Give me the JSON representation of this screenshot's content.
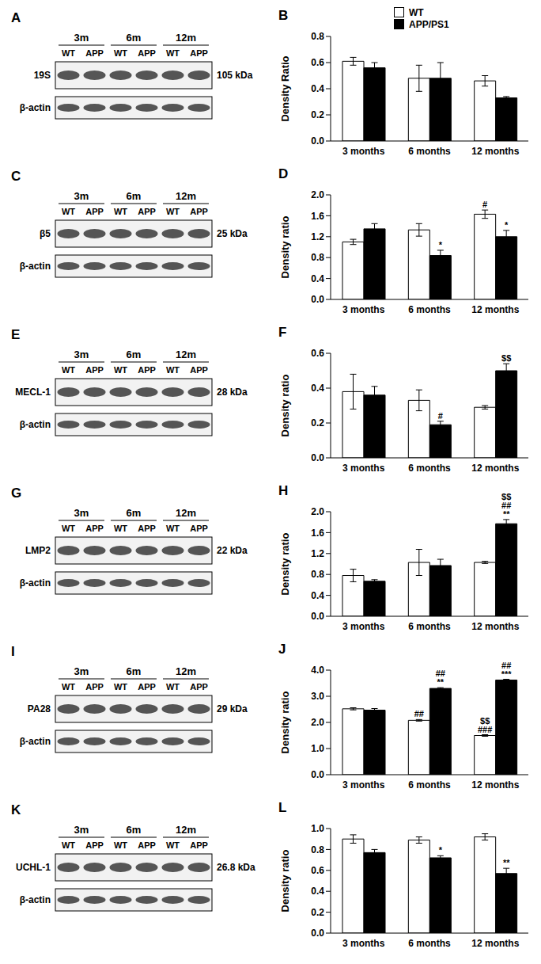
{
  "chart_data": [
    {
      "type": "bar",
      "title": "B",
      "y_label": "Density Ratio",
      "categories": [
        "3 months",
        "6 months",
        "12 months"
      ],
      "ylim": [
        0,
        0.8
      ],
      "yticks": [
        {
          "value": 0,
          "label": "0.0"
        },
        0.2,
        0.4,
        0.6,
        0.8
      ],
      "legend": "top",
      "series": [
        {
          "name": "WT",
          "color": "#ffffff",
          "values": [
            0.61,
            0.48,
            0.46
          ],
          "errors": [
            0.03,
            0.1,
            0.04
          ],
          "annotations": [
            [],
            [],
            []
          ]
        },
        {
          "name": "APP/PS1",
          "color": "#000000",
          "values": [
            0.56,
            0.48,
            0.33
          ],
          "errors": [
            0.04,
            0.12,
            0.01
          ],
          "annotations": [
            [],
            [],
            []
          ]
        }
      ]
    },
    {
      "type": "bar",
      "title": "D",
      "y_label": "Density ratio",
      "categories": [
        "3 months",
        "6 months",
        "12 months"
      ],
      "ylim": [
        0,
        2
      ],
      "yticks": [
        {
          "value": 0,
          "label": "0.0"
        },
        0.4,
        0.8,
        1.2,
        1.6,
        {
          "value": 2,
          "label": "2.0"
        }
      ],
      "series": [
        {
          "name": "WT",
          "color": "#ffffff",
          "values": [
            1.1,
            1.33,
            1.63
          ],
          "errors": [
            0.05,
            0.12,
            0.08
          ],
          "annotations": [
            [],
            [],
            [
              "#"
            ]
          ]
        },
        {
          "name": "APP/PS1",
          "color": "#000000",
          "values": [
            1.35,
            0.84,
            1.2
          ],
          "errors": [
            0.1,
            0.1,
            0.12
          ],
          "annotations": [
            [],
            [
              "*"
            ],
            [
              "*"
            ]
          ]
        }
      ]
    },
    {
      "type": "bar",
      "title": "F",
      "y_label": "Density ratio",
      "categories": [
        "3 months",
        "6 months",
        "12 months"
      ],
      "ylim": [
        0,
        0.6
      ],
      "yticks": [
        {
          "value": 0,
          "label": "0.0"
        },
        0.2,
        0.4,
        0.6
      ],
      "series": [
        {
          "name": "WT",
          "color": "#ffffff",
          "values": [
            0.38,
            0.33,
            0.29
          ],
          "errors": [
            0.1,
            0.06,
            0.01
          ],
          "annotations": [
            [],
            [],
            []
          ]
        },
        {
          "name": "APP/PS1",
          "color": "#000000",
          "values": [
            0.36,
            0.19,
            0.5
          ],
          "errors": [
            0.05,
            0.02,
            0.04
          ],
          "annotations": [
            [],
            [
              "#"
            ],
            [
              "$$"
            ]
          ]
        }
      ]
    },
    {
      "type": "bar",
      "title": "H",
      "y_label": "Density ratio",
      "categories": [
        "3 months",
        "6 months",
        "12 months"
      ],
      "ylim": [
        0,
        2
      ],
      "yticks": [
        {
          "value": 0,
          "label": "0.0"
        },
        0.4,
        0.8,
        1.2,
        1.6,
        {
          "value": 2,
          "label": "2.0"
        }
      ],
      "series": [
        {
          "name": "WT",
          "color": "#ffffff",
          "values": [
            0.78,
            1.03,
            1.03
          ],
          "errors": [
            0.12,
            0.25,
            0.02
          ],
          "annotations": [
            [],
            [],
            []
          ]
        },
        {
          "name": "APP/PS1",
          "color": "#000000",
          "values": [
            0.67,
            0.97,
            1.77
          ],
          "errors": [
            0.03,
            0.12,
            0.08
          ],
          "annotations": [
            [],
            [],
            [
              "$$",
              "##",
              "**"
            ]
          ]
        }
      ]
    },
    {
      "type": "bar",
      "title": "J",
      "y_label": "Density ratio",
      "categories": [
        "3 months",
        "6 months",
        "12 months"
      ],
      "ylim": [
        0,
        4
      ],
      "yticks": [
        {
          "value": 0,
          "label": "0.0"
        },
        {
          "value": 1,
          "label": "1.0"
        },
        {
          "value": 2,
          "label": "2.0"
        },
        {
          "value": 3,
          "label": "3.0"
        },
        {
          "value": 4,
          "label": "4.0"
        }
      ],
      "series": [
        {
          "name": "WT",
          "color": "#ffffff",
          "values": [
            2.52,
            2.08,
            1.5
          ],
          "errors": [
            0.04,
            0.03,
            0.03
          ],
          "annotations": [
            [],
            [
              "##"
            ],
            [
              "$$",
              "###"
            ]
          ]
        },
        {
          "name": "APP/PS1",
          "color": "#000000",
          "values": [
            2.47,
            3.3,
            3.62
          ],
          "errors": [
            0.06,
            0.03,
            0.03
          ],
          "annotations": [
            [],
            [
              "##",
              "**"
            ],
            [
              "##",
              "***"
            ]
          ]
        }
      ]
    },
    {
      "type": "bar",
      "title": "L",
      "y_label": "Density ratio",
      "categories": [
        "3 months",
        "6 months",
        "12 months"
      ],
      "ylim": [
        0,
        1
      ],
      "yticks": [
        {
          "value": 0,
          "label": "0.0"
        },
        0.2,
        0.4,
        0.6,
        0.8,
        {
          "value": 1,
          "label": "1.0"
        }
      ],
      "series": [
        {
          "name": "WT",
          "color": "#ffffff",
          "values": [
            0.9,
            0.89,
            0.92
          ],
          "errors": [
            0.04,
            0.03,
            0.03
          ],
          "annotations": [
            [],
            [],
            []
          ]
        },
        {
          "name": "APP/PS1",
          "color": "#000000",
          "values": [
            0.77,
            0.72,
            0.57
          ],
          "errors": [
            0.03,
            0.02,
            0.05
          ],
          "annotations": [
            [],
            [
              "*"
            ],
            [
              "**"
            ]
          ]
        }
      ]
    }
  ],
  "blots": [
    {
      "title": "A",
      "protein": "19S",
      "size": "105 kDa",
      "loading": "β-actin",
      "groups": [
        "3m",
        "6m",
        "12m"
      ],
      "lanes": [
        "WT",
        "APP"
      ]
    },
    {
      "title": "C",
      "protein": "β5",
      "size": "25 kDa",
      "loading": "β-actin",
      "groups": [
        "3m",
        "6m",
        "12m"
      ],
      "lanes": [
        "WT",
        "APP"
      ]
    },
    {
      "title": "E",
      "protein": "MECL-1",
      "size": "28 kDa",
      "loading": "β-actin",
      "groups": [
        "3m",
        "6m",
        "12m"
      ],
      "lanes": [
        "WT",
        "APP"
      ]
    },
    {
      "title": "G",
      "protein": "LMP2",
      "size": "22 kDa",
      "loading": "β-actin",
      "groups": [
        "3m",
        "6m",
        "12m"
      ],
      "lanes": [
        "WT",
        "APP"
      ]
    },
    {
      "title": "I",
      "protein": "PA28",
      "size": "29 kDa",
      "loading": "β-actin",
      "groups": [
        "3m",
        "6m",
        "12m"
      ],
      "lanes": [
        "WT",
        "APP"
      ]
    },
    {
      "title": "K",
      "protein": "UCHL-1",
      "size": "26.8 kDa",
      "loading": "β-actin",
      "groups": [
        "3m",
        "6m",
        "12m"
      ],
      "lanes": [
        "WT",
        "APP"
      ]
    }
  ]
}
